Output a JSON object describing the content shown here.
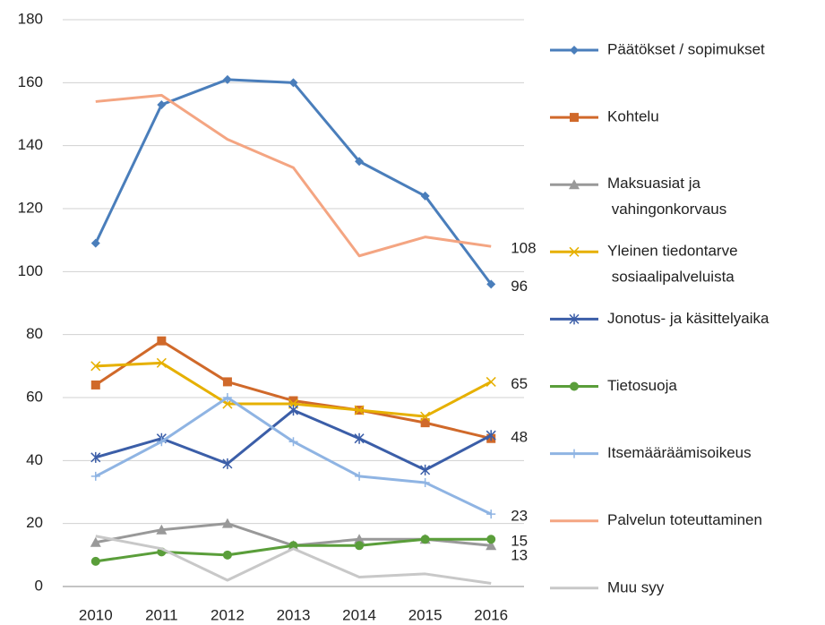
{
  "chart_data": {
    "type": "line",
    "categories": [
      "2010",
      "2011",
      "2012",
      "2013",
      "2014",
      "2015",
      "2016"
    ],
    "ylim": [
      0,
      180
    ],
    "yticks": [
      0,
      20,
      40,
      60,
      80,
      100,
      120,
      140,
      160,
      180
    ],
    "grid": true,
    "legend": "right",
    "series": [
      {
        "name": "Päätökset / sopimukset",
        "color": "#4a7ebb",
        "marker": "diamond",
        "end_label": true,
        "values": [
          109,
          153,
          161,
          160,
          135,
          124,
          96
        ]
      },
      {
        "name": "Kohtelu",
        "color": "#d0692a",
        "marker": "square",
        "values": [
          64,
          78,
          65,
          59,
          56,
          52,
          47
        ]
      },
      {
        "name": "Maksuasiat ja vahingonkorvaus",
        "color": "#999999",
        "marker": "triangle",
        "end_label": true,
        "values": [
          14,
          18,
          20,
          13,
          15,
          15,
          13
        ]
      },
      {
        "name": "Yleinen tiedontarve sosiaalipalveluista",
        "color": "#e6b000",
        "marker": "x",
        "end_label": true,
        "values": [
          70,
          71,
          58,
          58,
          56,
          54,
          65
        ]
      },
      {
        "name": "Jonotus- ja käsittelyaika",
        "color": "#3b5ea8",
        "marker": "asterisk",
        "end_label": true,
        "values": [
          41,
          47,
          39,
          56,
          47,
          37,
          48
        ]
      },
      {
        "name": "Tietosuoja",
        "color": "#5a9e3a",
        "marker": "circle",
        "end_label": true,
        "values": [
          8,
          11,
          10,
          13,
          13,
          15,
          15
        ]
      },
      {
        "name": "Itsemääräämisoikeus",
        "color": "#8fb4e3",
        "marker": "plus",
        "end_label": true,
        "values": [
          35,
          46,
          60,
          46,
          35,
          33,
          23
        ]
      },
      {
        "name": "Palvelun toteuttaminen",
        "color": "#f4a582",
        "marker": "none",
        "end_label": true,
        "values": [
          154,
          156,
          142,
          133,
          105,
          111,
          108
        ]
      },
      {
        "name": "Muu syy",
        "color": "#c8c8c8",
        "marker": "none",
        "values": [
          16,
          12,
          2,
          12,
          3,
          4,
          1
        ]
      }
    ]
  }
}
